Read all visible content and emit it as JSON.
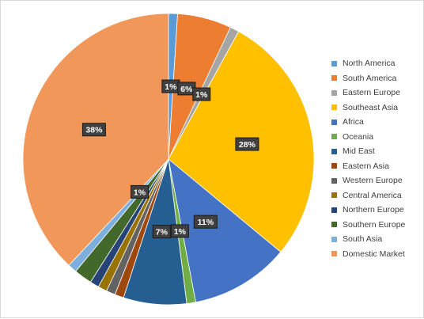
{
  "chart_data": {
    "type": "pie",
    "title": "",
    "legend_position": "right",
    "categories": [
      "North America",
      "South America",
      "Eastern Europe",
      "Southeast Asia",
      "Africa",
      "Oceania",
      "Mid East",
      "Eastern Asia",
      "Western Europe",
      "Central America",
      "Northern Europe",
      "Southern Europe",
      "South Asia",
      "Domestic Market"
    ],
    "values": [
      1.0,
      6.0,
      1.0,
      28.0,
      11.0,
      1.0,
      7.0,
      1.0,
      1.0,
      1.0,
      1.0,
      2.0,
      1.0,
      38.0
    ],
    "data_labels": [
      "1%",
      "6%",
      "1%",
      "28%",
      "11%",
      "1%",
      "7%",
      "",
      "",
      "",
      "",
      "",
      "1%",
      "38%"
    ],
    "colors": [
      "#5b9bd5",
      "#ed7d31",
      "#a5a5a5",
      "#ffc000",
      "#4472c4",
      "#70ad47",
      "#255e91",
      "#9e480e",
      "#636363",
      "#997300",
      "#264478",
      "#43682b",
      "#7cafdd",
      "#f1975a"
    ],
    "start_angle_deg": 0,
    "direction": "clockwise"
  }
}
